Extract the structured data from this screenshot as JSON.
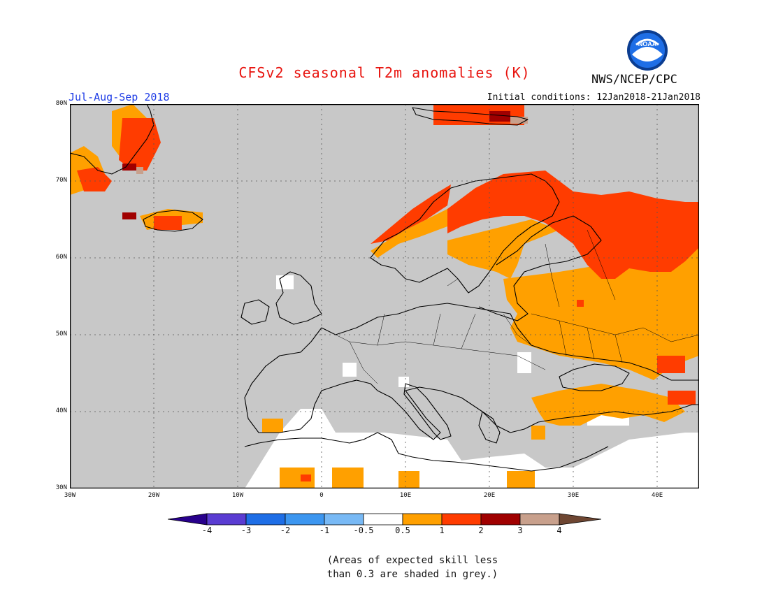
{
  "header": {
    "title": "CFSv2 seasonal T2m anomalies (K)",
    "period": "Jul-Aug-Sep 2018",
    "initial_conditions": "Initial conditions: 12Jan2018-21Jan2018",
    "agency": "NWS/NCEP/CPC",
    "logo_text": "NOAA"
  },
  "map": {
    "region": "Europe",
    "lon_range": [
      -30,
      45
    ],
    "lat_range": [
      30,
      80
    ],
    "lat_labels": [
      "80N",
      "70N",
      "60N",
      "50N",
      "40N",
      "30N"
    ],
    "lon_labels": [
      "30W",
      "20W",
      "10W",
      "0",
      "10E",
      "20E",
      "30E",
      "40E"
    ],
    "skill_mask_color": "#c8c8c8",
    "colors": {
      "neutral": "#ffffff",
      "c05_1": "#ffa000",
      "c1_2": "#ff3c00",
      "c2_3": "#a00000",
      "c3_4": "#c8a08c"
    }
  },
  "colorbar": {
    "labels": [
      "-4",
      "-3",
      "-2",
      "-1",
      "-0.5",
      "0.5",
      "1",
      "2",
      "3",
      "4"
    ],
    "colors": [
      "#3c00b4",
      "#5a3cd2",
      "#1e6ee6",
      "#3c96f0",
      "#78b9f5",
      "#ffffff",
      "#ffa000",
      "#ff3c00",
      "#a00000",
      "#c8a08c"
    ],
    "under_color": "#28008c",
    "over_color": "#6e4632"
  },
  "footnote": {
    "line1": "(Areas of expected skill less",
    "line2": "than 0.3 are shaded in grey.)"
  }
}
